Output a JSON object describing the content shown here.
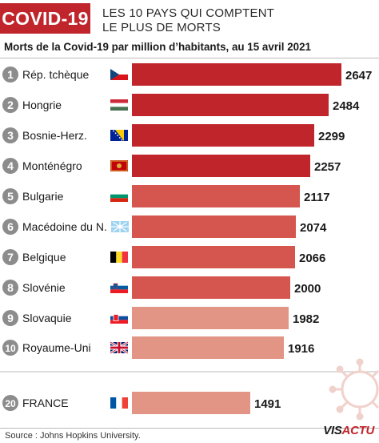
{
  "header": {
    "badge": "COVID-19",
    "line1": "LES 10 PAYS QUI COMPTENT",
    "line2": "LE PLUS DE MORTS"
  },
  "subtitle": "Morts de la Covid-19 par million d’habitants, au 15 avril 2021",
  "source": "Source : Johns Hopkins University.",
  "logo": {
    "part1": "VIS",
    "part2": "ACTU"
  },
  "colors": {
    "dark_red": "#c0252c",
    "mid_red": "#d4564f",
    "light_red": "#e39585",
    "france": "#e39585",
    "rank_circle": "#8c8c8c"
  },
  "chart_data": {
    "type": "bar",
    "orientation": "horizontal",
    "title": "Morts de la Covid-19 par million d’habitants, au 15 avril 2021",
    "rows": [
      {
        "rank": "1",
        "country": "Rép. tchèque",
        "value": 2647,
        "flag": "czech-flag",
        "shade": "dark"
      },
      {
        "rank": "2",
        "country": "Hongrie",
        "value": 2484,
        "flag": "hungary-flag",
        "shade": "dark"
      },
      {
        "rank": "3",
        "country": "Bosnie-Herz.",
        "value": 2299,
        "flag": "bosnia-flag",
        "shade": "dark"
      },
      {
        "rank": "4",
        "country": "Monténégro",
        "value": 2257,
        "flag": "montenegro-flag",
        "shade": "dark"
      },
      {
        "rank": "5",
        "country": "Bulgarie",
        "value": 2117,
        "flag": "bulgaria-flag",
        "shade": "mid"
      },
      {
        "rank": "6",
        "country": "Macédoine du N.",
        "value": 2074,
        "flag": "north-macedonia-flag",
        "shade": "mid"
      },
      {
        "rank": "7",
        "country": "Belgique",
        "value": 2066,
        "flag": "belgium-flag",
        "shade": "mid"
      },
      {
        "rank": "8",
        "country": "Slovénie",
        "value": 2000,
        "flag": "slovenia-flag",
        "shade": "mid"
      },
      {
        "rank": "9",
        "country": "Slovaquie",
        "value": 1982,
        "flag": "slovakia-flag",
        "shade": "light"
      },
      {
        "rank": "10",
        "country": "Royaume-Uni",
        "value": 1916,
        "flag": "uk-flag",
        "shade": "light"
      },
      {
        "rank": "20",
        "country": "FRANCE",
        "value": 1491,
        "flag": "france-flag",
        "shade": "france"
      }
    ]
  }
}
